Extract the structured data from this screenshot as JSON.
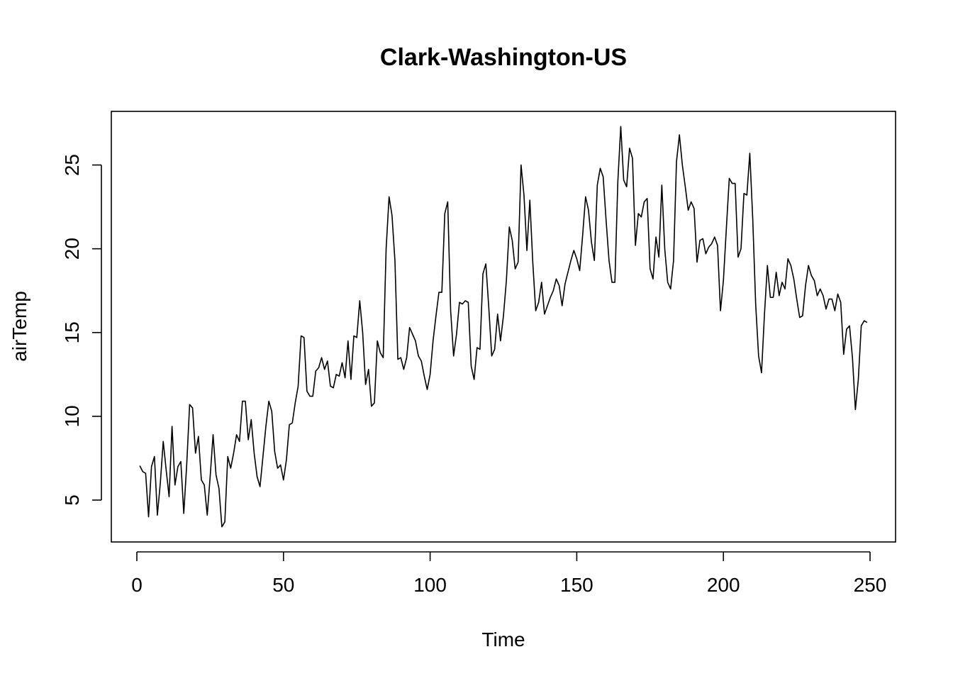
{
  "chart_data": {
    "type": "line",
    "title": "Clark-Washington-US",
    "xlabel": "Time",
    "ylabel": "airTemp",
    "xlim": [
      -8.7,
      258.7
    ],
    "ylim": [
      2.5,
      28.2
    ],
    "xticks": [
      0,
      50,
      100,
      150,
      200,
      250
    ],
    "yticks": [
      5,
      10,
      15,
      20,
      25
    ],
    "grid": false,
    "line_color": "#000000",
    "series": [
      {
        "values": [
          7.05,
          6.7,
          6.6,
          4.0,
          7.0,
          7.6,
          4.1,
          6.0,
          8.5,
          6.8,
          5.2,
          9.4,
          5.9,
          7.0,
          7.3,
          4.2,
          7.1,
          10.7,
          10.5,
          7.8,
          8.8,
          6.2,
          5.9,
          4.1,
          6.4,
          8.9,
          6.5,
          5.7,
          3.4,
          3.7,
          7.6,
          6.9,
          7.8,
          8.9,
          8.5,
          10.9,
          10.9,
          8.6,
          9.8,
          7.8,
          6.4,
          5.8,
          7.6,
          9.4,
          10.9,
          10.3,
          7.9,
          6.9,
          7.1,
          6.2,
          7.4,
          9.5,
          9.6,
          10.8,
          11.8,
          14.8,
          14.7,
          11.5,
          11.2,
          11.2,
          12.7,
          12.9,
          13.5,
          12.8,
          13.3,
          11.8,
          11.7,
          12.5,
          12.4,
          13.2,
          12.3,
          14.5,
          12.2,
          14.8,
          14.7,
          16.9,
          15.0,
          11.9,
          12.8,
          10.6,
          10.8,
          14.5,
          13.8,
          13.5,
          20.0,
          23.1,
          22.0,
          19.3,
          13.4,
          13.5,
          12.8,
          13.5,
          15.3,
          14.9,
          14.5,
          13.6,
          13.3,
          12.4,
          11.6,
          12.5,
          14.5,
          16.0,
          17.4,
          17.4,
          22.1,
          22.8,
          16.3,
          13.6,
          14.9,
          16.8,
          16.7,
          16.9,
          16.8,
          13.0,
          12.2,
          14.1,
          14.0,
          18.5,
          19.1,
          16.5,
          13.6,
          14.0,
          16.1,
          14.5,
          16.0,
          18.1,
          21.3,
          20.5,
          18.8,
          19.2,
          25.0,
          23.2,
          19.9,
          22.9,
          19.2,
          16.3,
          16.8,
          18.0,
          16.1,
          16.6,
          17.1,
          17.5,
          18.2,
          17.8,
          16.6,
          17.9,
          18.6,
          19.3,
          19.9,
          19.4,
          18.7,
          20.8,
          23.1,
          22.3,
          20.4,
          19.3,
          23.8,
          24.8,
          24.3,
          21.7,
          19.3,
          18.0,
          18.0,
          24.0,
          27.3,
          24.1,
          23.7,
          26.0,
          25.4,
          20.2,
          22.1,
          21.9,
          22.8,
          23.0,
          18.8,
          18.2,
          20.7,
          19.5,
          23.8,
          20.0,
          18.0,
          17.6,
          19.3,
          25.2,
          26.8,
          25.0,
          23.7,
          22.3,
          22.8,
          22.4,
          19.2,
          20.5,
          20.6,
          19.7,
          20.1,
          20.3,
          20.7,
          20.2,
          16.3,
          18.1,
          21.2,
          24.2,
          23.9,
          23.9,
          19.5,
          20.0,
          23.3,
          23.2,
          25.7,
          21.8,
          16.7,
          13.6,
          12.6,
          16.1,
          19.0,
          17.1,
          17.1,
          18.6,
          17.2,
          18.0,
          17.6,
          19.4,
          19.0,
          18.2,
          17.0,
          15.9,
          16.0,
          17.8,
          19.0,
          18.4,
          18.1,
          17.2,
          17.6,
          17.2,
          16.4,
          17.0,
          17.0,
          16.3,
          17.3,
          16.8,
          13.7,
          15.2,
          15.4,
          13.5,
          10.4,
          12.2,
          15.4,
          15.7,
          15.6
        ]
      }
    ]
  }
}
